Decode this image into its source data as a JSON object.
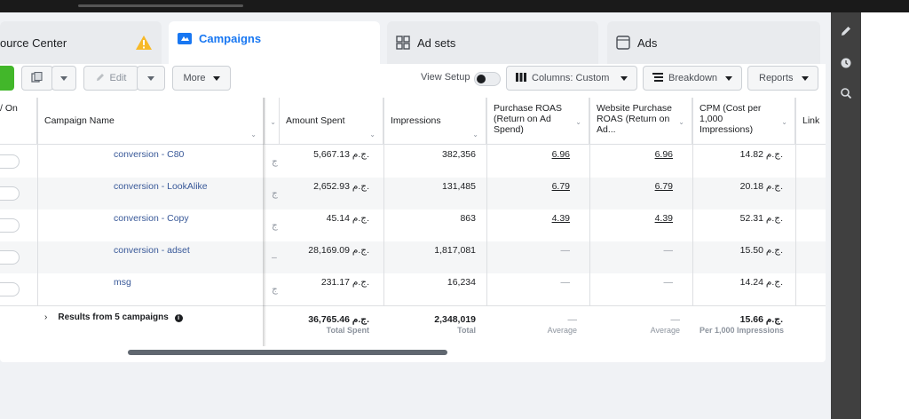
{
  "tabs": {
    "resource_center": "ource Center",
    "campaigns": "Campaigns",
    "ad_sets": "Ad sets",
    "ads": "Ads"
  },
  "toolbar": {
    "edit": "Edit",
    "more": "More",
    "view_setup": "View Setup",
    "columns": "Columns: Custom",
    "breakdown": "Breakdown",
    "reports": "Reports"
  },
  "columns": {
    "on_off": "/ On",
    "campaign_name": "Campaign Name",
    "amount_spent": "Amount Spent",
    "impressions": "Impressions",
    "purchase_roas": "Purchase ROAS (Return on Ad Spend)",
    "website_roas": "Website Purchase ROAS (Return on Ad...",
    "cpm": "CPM (Cost per 1,000 Impressions)",
    "link": "Link"
  },
  "rows": [
    {
      "name": "conversion - C80",
      "amount": "5,667.13 ج.م.",
      "impressions": "382,356",
      "roas": "6.96",
      "web_roas": "6.96",
      "cpm": "14.82 ج.م."
    },
    {
      "name": "conversion - LookAlike",
      "amount": "2,652.93 ج.م.",
      "impressions": "131,485",
      "roas": "6.79",
      "web_roas": "6.79",
      "cpm": "20.18 ج.م."
    },
    {
      "name": "conversion - Copy",
      "amount": "45.14 ج.م.",
      "impressions": "863",
      "roas": "4.39",
      "web_roas": "4.39",
      "cpm": "52.31 ج.م."
    },
    {
      "name": "conversion - adset",
      "amount": "28,169.09 ج.م.",
      "impressions": "1,817,081",
      "roas": "—",
      "web_roas": "—",
      "cpm": "15.50 ج.م."
    },
    {
      "name": "msg",
      "amount": "231.17 ج.م.",
      "impressions": "16,234",
      "roas": "—",
      "web_roas": "—",
      "cpm": "14.24 ج.م."
    }
  ],
  "totals": {
    "label": "Results from 5 campaigns",
    "amount": "36,765.46 ج.م.",
    "amount_sub": "Total Spent",
    "impressions": "2,348,019",
    "impressions_sub": "Total",
    "roas": "—",
    "roas_sub": "Average",
    "web_roas": "—",
    "web_roas_sub": "Average",
    "cpm": "15.66 ج.م.",
    "cpm_sub": "Per 1,000 Impressions"
  },
  "colors": {
    "accent": "#1877f2",
    "link": "#385898",
    "warning": "#f7b928",
    "create": "#42b72a"
  }
}
